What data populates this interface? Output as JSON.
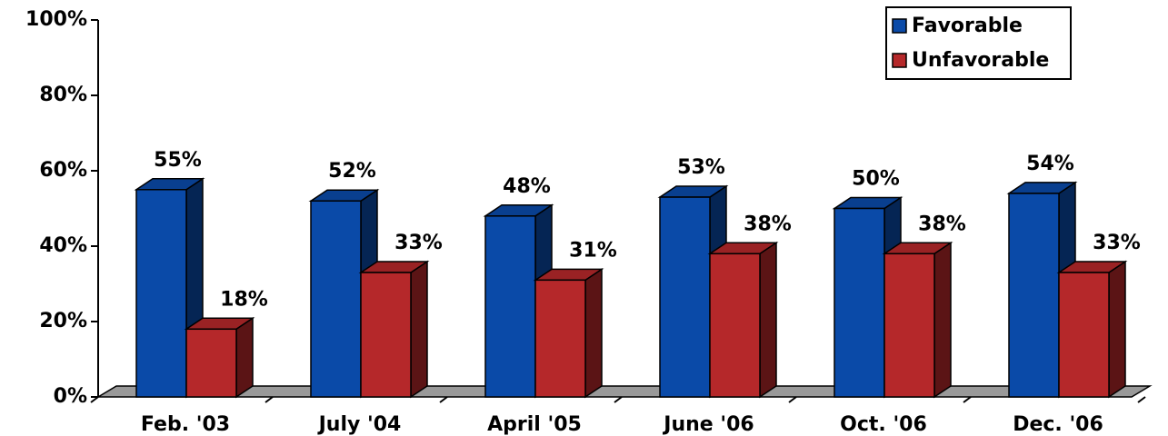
{
  "chart_data": {
    "type": "bar3d",
    "categories": [
      "Feb. '03",
      "July '04",
      "April '05",
      "June '06",
      "Oct. '06",
      "Dec. '06"
    ],
    "series": [
      {
        "name": "Favorable",
        "color": "#0a4aa8",
        "values": [
          55,
          52,
          48,
          53,
          50,
          54
        ],
        "value_labels": [
          "55%",
          "52%",
          "48%",
          "53%",
          "50%",
          "54%"
        ]
      },
      {
        "name": "Unfavorable",
        "color": "#b5282a",
        "values": [
          18,
          33,
          31,
          38,
          38,
          33
        ],
        "value_labels": [
          "18%",
          "33%",
          "31%",
          "38%",
          "38%",
          "33%"
        ]
      }
    ],
    "ylim": [
      0,
      100
    ],
    "yticks": [
      {
        "value": 0,
        "label": "0%"
      },
      {
        "value": 20,
        "label": "20%"
      },
      {
        "value": 40,
        "label": "40%"
      },
      {
        "value": 60,
        "label": "60%"
      },
      {
        "value": 80,
        "label": "80%"
      },
      {
        "value": 100,
        "label": "100%"
      }
    ],
    "legend": "top-right"
  }
}
